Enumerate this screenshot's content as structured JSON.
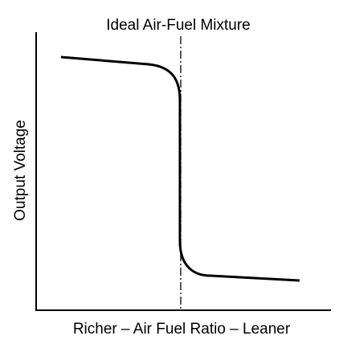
{
  "title": "Ideal Air-Fuel Mixture",
  "y_label": "Output Voltage",
  "x_label": "Richer – Air Fuel Ratio – Leaner"
}
